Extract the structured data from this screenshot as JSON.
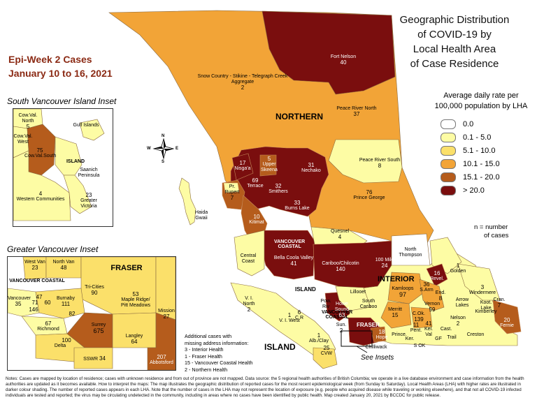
{
  "title_lines": [
    "Geographic Distribution",
    "of COVID-19 by",
    "Local Health Area",
    "of Case Residence"
  ],
  "epi_week": {
    "line1": "Epi-Week 2 Cases",
    "line2": "January 10 to 16, 2021"
  },
  "legend": {
    "title_line1": "Average daily rate per",
    "title_line2": "100,000 population by LHA",
    "items": [
      {
        "label": "0.0",
        "color": "#ffffff"
      },
      {
        "label": "0.1 - 5.0",
        "color": "#fdfca4"
      },
      {
        "label": "5.1 - 10.0",
        "color": "#fbe06a"
      },
      {
        "label": "10.1 - 15.0",
        "color": "#f2a437"
      },
      {
        "label": "15.1 - 20.0",
        "color": "#b55c1c"
      },
      {
        "label": "> 20.0",
        "color": "#7a0e0e"
      }
    ],
    "n_note_line1": "n = number",
    "n_note_line2": "of cases"
  },
  "regions": {
    "northern": "NORTHERN",
    "interior": "INTERIOR",
    "vancouver_coastal_line1": "VANCOUVER",
    "vancouver_coastal_line2": "COASTAL",
    "vancouver_coastal_south_line1": "VANCOUVER",
    "vancouver_coastal_south_line2": "COASTAL",
    "fraser": "FRASER",
    "island": "ISLAND",
    "island_small": "ISLAND"
  },
  "inset_labels": {
    "south_vancouver_island": "South Vancouver Island Inset",
    "greater_vancouver": "Greater Vancouver Inset",
    "see_insets": "See Insets"
  },
  "map_labels": {
    "fort_nelson": {
      "name": "Fort Nelson",
      "n": "40"
    },
    "stikine": {
      "name": "Snow Country - Stikine - Telegraph Creek\nAggregate",
      "n": "2"
    },
    "peace_river_north": {
      "name": "Peace River North",
      "n": "37"
    },
    "peace_river_south": {
      "name": "Peace River South",
      "n": "8"
    },
    "prince_george": {
      "name": "Prince George",
      "n": "76"
    },
    "nisgaa": {
      "name": "Nisga'a",
      "n": "17"
    },
    "upper_skeena": {
      "name": "Upper\nSkeena",
      "n": "5"
    },
    "nechako": {
      "name": "Nechako",
      "n": "31"
    },
    "terrace": {
      "name": "Terrace",
      "n": "69"
    },
    "smithers": {
      "name": "Smithers",
      "n": "32"
    },
    "burns_lake": {
      "name": "Burns Lake",
      "n": "33"
    },
    "prince_rupert": {
      "name": "Pr.\nRupert",
      "n": "7"
    },
    "kitimat": {
      "name": "Kitimat",
      "n": "10"
    },
    "haida_gwaii": {
      "name": "Haida\nGwaii"
    },
    "quesnel": {
      "name": "Quesnel",
      "n": "4"
    },
    "bella_coola": {
      "name": "Bella Coola Valley",
      "n": "41"
    },
    "central_coast": {
      "name": "Central\nCoast"
    },
    "cariboo": {
      "name": "Cariboo/Chilcotin",
      "n": "140"
    },
    "hundred_mile": {
      "name": "100 Mile",
      "n": "24"
    },
    "north_thompson": {
      "name": "North\nThompson"
    },
    "golden": {
      "name": "Golden",
      "n": "1"
    },
    "revelstoke": {
      "name": "Revel.",
      "n": "16"
    },
    "windermere": {
      "name": "Windermere",
      "n": "3"
    },
    "kamloops": {
      "name": "Kamloops",
      "n": "97"
    },
    "salmon_arm": {
      "name": "S.Arm",
      "n": "36"
    },
    "enderby": {
      "name": "End.",
      "n": "8"
    },
    "vernon": {
      "name": "Vernon",
      "n": "59"
    },
    "c_okanagan": {
      "name": "C.Ok.",
      "n": "139"
    },
    "arrow_lakes": {
      "name": "Arrow\nLakes"
    },
    "kootenay_lake": {
      "name": "Koot.\nLake"
    },
    "kimberley": {
      "name": "Kimberley"
    },
    "cranbrook": {
      "name": "Cran.",
      "n": "7"
    },
    "fernie": {
      "name": "Fernie",
      "n": "20"
    },
    "nelson": {
      "name": "Nelson",
      "n": "2"
    },
    "castlegar": {
      "name": "Cast."
    },
    "creston": {
      "name": "Creston"
    },
    "trail": {
      "name": "Trail"
    },
    "grand_forks": {
      "name": "GF"
    },
    "s_ok": {
      "name": "S OK"
    },
    "keremeos": {
      "name": "Ker."
    },
    "penticton": {
      "name": "Pent.",
      "n": "11"
    },
    "keremeos2": {
      "name": "Kel.\nVal",
      "n": "41"
    },
    "princeton": {
      "name": "Prince."
    },
    "merritt": {
      "name": "Merritt",
      "n": "15"
    },
    "lillooet": {
      "name": "Lillooet"
    },
    "south_cariboo": {
      "name": "South\nCariboo"
    },
    "howe_sound": {
      "name": "Howe\nSound",
      "n": "63"
    },
    "powell_river": {
      "name": "Pow.\nRiv"
    },
    "sunshine": {
      "name": "Sun.",
      "n": "2"
    },
    "hope": {
      "name": "Hope",
      "n": "18"
    },
    "chilliwack": {
      "name": "Chilliwack"
    },
    "v_i_north": {
      "name": "V. I.\nNorth",
      "n": "2"
    },
    "v_i_west": {
      "name": "V. I. West",
      "n": "1"
    },
    "c_r": {
      "name": "C R",
      "n": "6"
    },
    "alb": {
      "name": "Alb./Clay",
      "n": "1"
    },
    "cvw": {
      "name": "CVW",
      "n": "25"
    }
  },
  "svi_inset": {
    "cow_val_north": {
      "name": "Cow.Val.\nNorth",
      "n": "5"
    },
    "gulf_islands": {
      "name": "Gulf Islands"
    },
    "cow_val_west": {
      "name": "Cow.Val.\nWest"
    },
    "cow_val_south": {
      "name": "Cow.Val.South",
      "n": "75"
    },
    "island": "ISLAND",
    "saanich": {
      "name": "Saanich\nPeninsula"
    },
    "western": {
      "name": "Western Communities",
      "n": "4"
    },
    "greater_victoria": {
      "name": "Greater\nVictoria",
      "n": "23"
    }
  },
  "gv_inset": {
    "west_van": {
      "name": "West Van",
      "n": "23"
    },
    "north_van": {
      "name": "North Van",
      "n": "48"
    },
    "vancouver_coastal": "VANCOUVER COASTAL",
    "fraser": "FRASER",
    "tri_cities": {
      "name": "Tri-Cities",
      "n": "90"
    },
    "maple_ridge": {
      "name": "Maple Ridge/\nPitt Meadows",
      "n": "53"
    },
    "vancouver": {
      "name": "Vancouver",
      "n": "35"
    },
    "v71": {
      "n": "71"
    },
    "v47": {
      "n": "47"
    },
    "v60": {
      "n": "60"
    },
    "v146": {
      "n": "146"
    },
    "burnaby": {
      "name": "Burnaby",
      "n": "111"
    },
    "new_west": {
      "n": "82"
    },
    "mission": {
      "name": "Mission",
      "n": "27"
    },
    "richmond": {
      "name": "Richmond",
      "n": "67"
    },
    "delta": {
      "name": "Delta",
      "n": "100"
    },
    "surrey": {
      "name": "Surrey",
      "n": "675"
    },
    "langley": {
      "name": "Langley",
      "n": "64"
    },
    "sswr": {
      "name": "SSWR",
      "n": "34"
    },
    "abbotsford": {
      "name": "Abbotsford",
      "n": "207"
    }
  },
  "compass": {
    "n": "N",
    "s": "S",
    "e": "E",
    "w": "W"
  },
  "missing_address": {
    "line1": "Additional cases with",
    "line2": "missing address information:",
    "line3": "3 - Interior Health",
    "line4": "1 - Fraser Health",
    "line5": "15 - Vancouver Coastal Health",
    "line6": "2 - Northern Health"
  },
  "notes": "Notes: Cases are mapped by location of residence; cases with unknown residence and from out of province are not mapped. Data source: the 5 regional health authorities of British Columbia; we operate in a live database environment and case information from the health authorities are updated as it becomes available. How to interpret the maps: The map illustrates the geographic distribution of reported cases for the most recent epidemiological week (from Sunday to Saturday). Local Health Areas (LHA) with higher rates are illustrated in darker colour shading. The number of reported cases appears in each LHA. Note that the number of cases in the LHA may not represent the location of exposure (e.g. people who acquired disease while traveling or working elsewhere), and that not all COVID-19 infected individuals are tested and reported; the virus may be circulating undetected in the community, including in areas where no cases have been identified by public health. Map created January 20, 2021 by BCCDC for public release."
}
